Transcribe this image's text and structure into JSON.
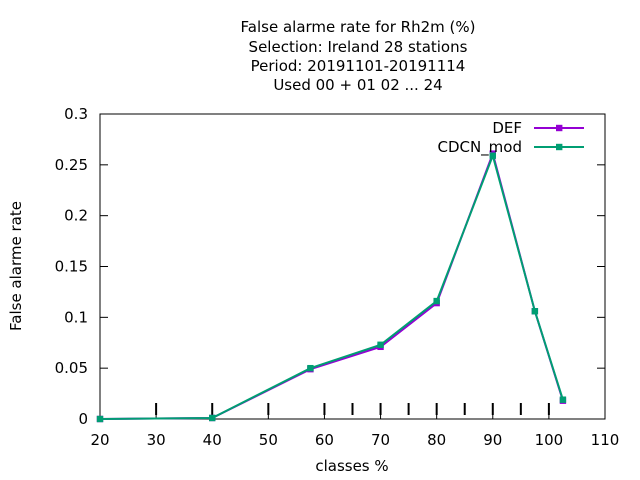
{
  "chart_data": {
    "type": "line",
    "title_lines": [
      "False alarme rate  for Rh2m (%)",
      "Selection: Ireland     28 stations",
      "Period: 20191101-20191114",
      "Used  00 + 01 02 ... 24"
    ],
    "xlabel": "classes %",
    "ylabel": "False alarme rate",
    "xlim": [
      20,
      110
    ],
    "ylim": [
      0,
      0.3
    ],
    "xticks": [
      20,
      30,
      40,
      50,
      60,
      70,
      80,
      90,
      100,
      110
    ],
    "xtick_labels": [
      "20",
      "30",
      "40",
      "50",
      "60",
      "70",
      "80",
      "90",
      "100",
      "110"
    ],
    "yticks": [
      0,
      0.05,
      0.1,
      0.15,
      0.2,
      0.25,
      0.3
    ],
    "ytick_labels": [
      "0",
      "0.05",
      "0.1",
      "0.15",
      "0.2",
      "0.25",
      "0.3"
    ],
    "interior_markers_x": [
      30,
      40,
      50,
      60,
      65,
      70,
      75,
      80,
      85,
      90,
      95,
      100
    ],
    "legend_position": "top-right",
    "grid": false,
    "series": [
      {
        "name": "DEF",
        "color": "#9400d3",
        "x": [
          20,
          40,
          57.5,
          70,
          80,
          90,
          97.5,
          102.5
        ],
        "y": [
          0.0,
          0.001,
          0.049,
          0.071,
          0.114,
          0.261,
          0.106,
          0.018
        ]
      },
      {
        "name": "CDCN_mod",
        "color": "#009e73",
        "x": [
          20,
          40,
          57.5,
          70,
          80,
          90,
          97.5,
          102.5
        ],
        "y": [
          0.0,
          0.001,
          0.05,
          0.073,
          0.116,
          0.259,
          0.106,
          0.019
        ]
      }
    ]
  }
}
